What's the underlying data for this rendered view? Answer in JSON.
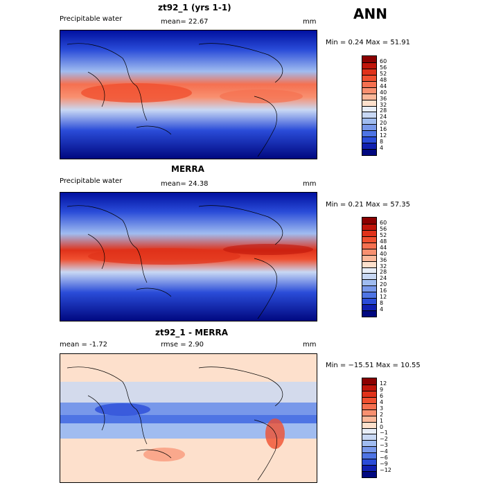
{
  "header": {
    "season": "ANN"
  },
  "panels": [
    {
      "id": "model",
      "title": "zt92_1 (yrs 1-1)",
      "left": "Precipitable water",
      "center": "mean=  22.67",
      "units": "mm",
      "minmax": "Min =   0.24  Max =  51.91",
      "levels": [
        "60",
        "56",
        "52",
        "48",
        "44",
        "40",
        "36",
        "32",
        "28",
        "24",
        "20",
        "16",
        "12",
        "8",
        "4"
      ]
    },
    {
      "id": "obs",
      "title": "MERRA",
      "left": "Precipitable water",
      "center": "mean=  24.38",
      "units": "mm",
      "minmax": "Min =   0.21  Max =  57.35",
      "levels": [
        "60",
        "56",
        "52",
        "48",
        "44",
        "40",
        "36",
        "32",
        "28",
        "24",
        "20",
        "16",
        "12",
        "8",
        "4"
      ]
    },
    {
      "id": "diff",
      "title": "zt92_1 - MERRA",
      "left": "mean =   -1.72",
      "center": "rmse =    2.90",
      "units": "mm",
      "minmax": "Min = −15.51  Max =  10.55",
      "levels": [
        "12",
        "9",
        "6",
        "4",
        "3",
        "2",
        "1",
        "0",
        "−1",
        "−2",
        "−3",
        "−4",
        "−6",
        "−9",
        "−12"
      ]
    }
  ],
  "colors": {
    "abs_scale": [
      "#8b0000",
      "#c0150a",
      "#e0321a",
      "#f05030",
      "#f57050",
      "#f89070",
      "#fbb89a",
      "#fde0cc",
      "#e8eef8",
      "#c8d8f4",
      "#a0bcf0",
      "#7898ea",
      "#4e74e4",
      "#2a4cd8",
      "#1020b0",
      "#000880"
    ],
    "diff_scale": [
      "#8b0000",
      "#c0150a",
      "#e0321a",
      "#f05030",
      "#f57050",
      "#f89070",
      "#fbb89a",
      "#fde0cc",
      "#e8eef8",
      "#c8d8f4",
      "#a0bcf0",
      "#7898ea",
      "#4e74e4",
      "#2a4cd8",
      "#1020b0",
      "#000880"
    ]
  }
}
